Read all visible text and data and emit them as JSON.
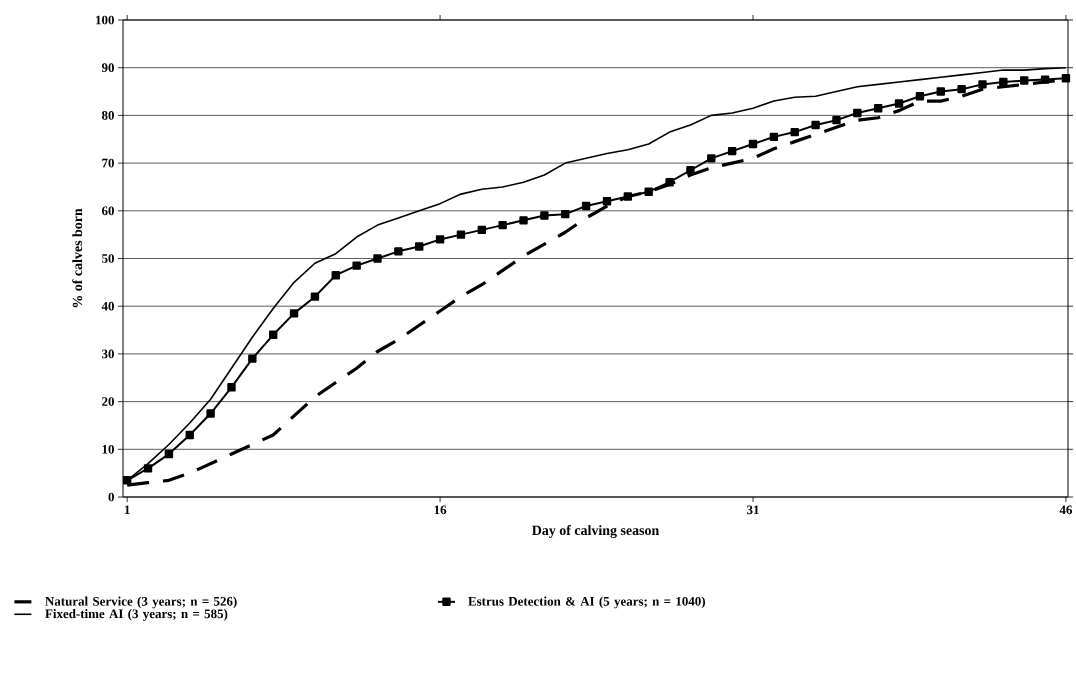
{
  "chart_data": {
    "type": "line",
    "xlabel": "Day of calving season",
    "ylabel": "% of calves born",
    "x": [
      1,
      2,
      3,
      4,
      5,
      6,
      7,
      8,
      9,
      10,
      11,
      12,
      13,
      14,
      15,
      16,
      17,
      18,
      19,
      20,
      21,
      22,
      23,
      24,
      25,
      26,
      27,
      28,
      29,
      30,
      31,
      32,
      33,
      34,
      35,
      36,
      37,
      38,
      39,
      40,
      41,
      42,
      43,
      44,
      45,
      46
    ],
    "series": [
      {
        "name": "Natural Service (3 years; n = 526)",
        "color": "#000000",
        "line_style": "dashed",
        "marker": "none",
        "values": [
          2.5,
          3,
          3.5,
          5,
          7,
          9,
          11,
          13,
          17,
          21,
          24,
          27,
          30.5,
          33,
          36,
          39,
          42,
          44.5,
          47.5,
          50.5,
          53,
          55.5,
          58.5,
          61,
          63,
          64,
          65.5,
          67.5,
          69,
          70,
          71,
          73,
          74.5,
          76,
          77.5,
          79,
          79.5,
          81,
          83,
          83,
          84,
          85.5,
          86,
          86.5,
          87,
          87.5
        ]
      },
      {
        "name": "Estrus Detection & AI (5 years; n = 1040)",
        "color": "#000000",
        "line_style": "solid",
        "marker": "square",
        "values": [
          3.5,
          6,
          9,
          13,
          17.5,
          23,
          29,
          34,
          38.5,
          42,
          46.5,
          48.5,
          50,
          51.5,
          52.5,
          54,
          55,
          56,
          57,
          58,
          59,
          59.3,
          61,
          62,
          63,
          64,
          66,
          68.5,
          71,
          72.5,
          74,
          75.5,
          76.5,
          78,
          79,
          80.5,
          81.5,
          82.5,
          84,
          85,
          85.5,
          86.5,
          87,
          87.3,
          87.5,
          87.8
        ]
      },
      {
        "name": "Fixed-time AI (3 years; n = 585)",
        "color": "#000000",
        "line_style": "solid",
        "marker": "none",
        "values": [
          3.5,
          7,
          11,
          15.5,
          20.5,
          27,
          33.5,
          39.5,
          45,
          49,
          51,
          54.5,
          57,
          58.5,
          60,
          61.5,
          63.5,
          64.5,
          65,
          66,
          67.5,
          70,
          71,
          72,
          72.8,
          74,
          76.5,
          78,
          80,
          80.5,
          81.5,
          83,
          83.8,
          84,
          85,
          86,
          86.5,
          87,
          87.5,
          88,
          88.5,
          89,
          89.5,
          89.5,
          89.8,
          90
        ]
      }
    ],
    "xlim": [
      0.8,
      46.1
    ],
    "xticks": [
      1,
      16,
      31,
      46
    ],
    "ylim": [
      0,
      100
    ],
    "yticks": [
      0,
      10,
      20,
      30,
      40,
      50,
      60,
      70,
      80,
      90,
      100
    ],
    "grid": "y",
    "legend": "bottom"
  }
}
